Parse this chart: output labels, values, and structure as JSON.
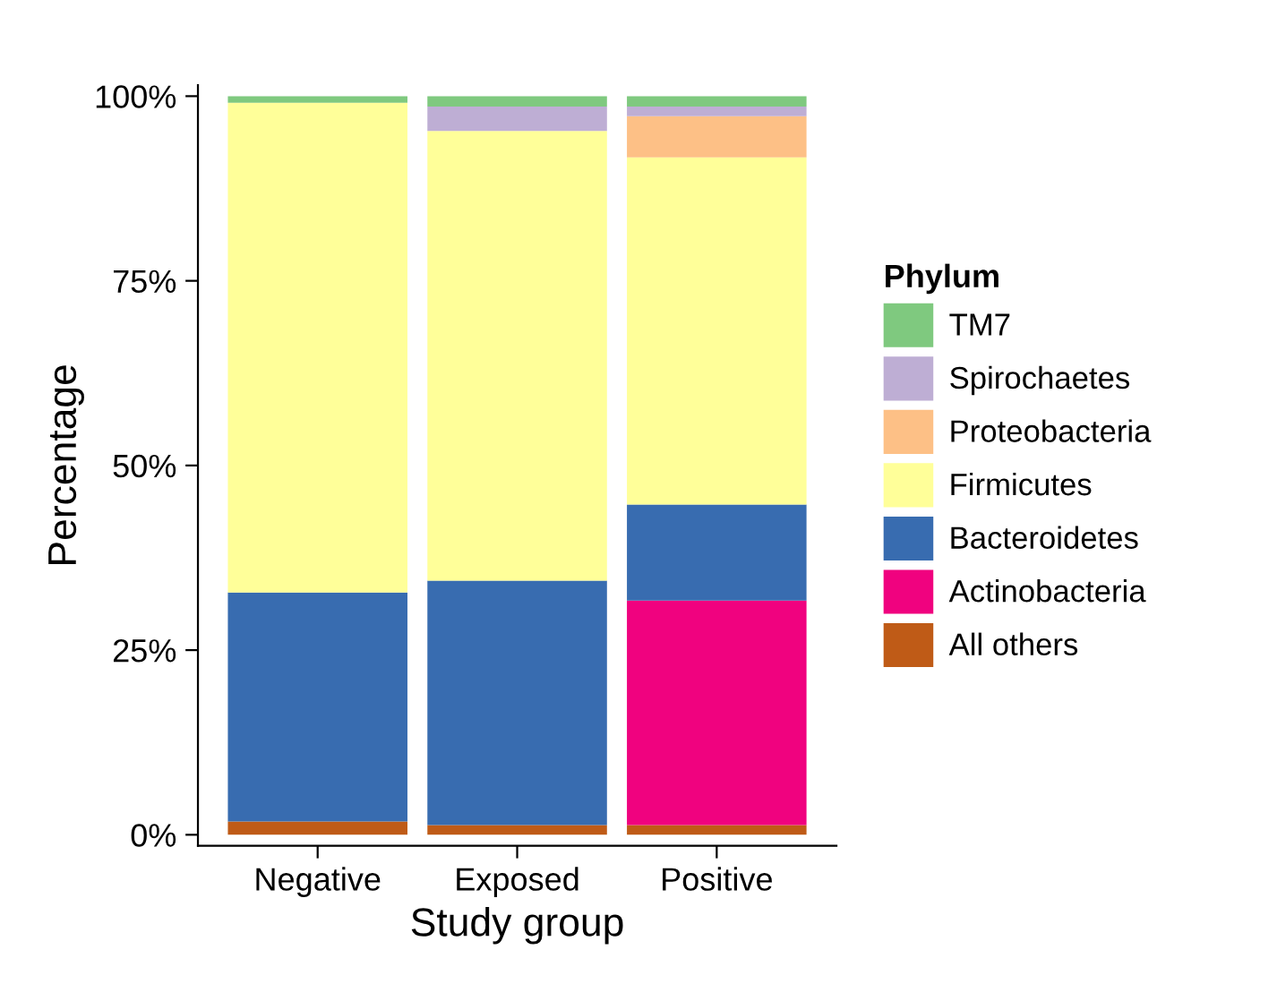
{
  "chart_data": {
    "type": "bar",
    "stacked": true,
    "xlabel": "Study group",
    "ylabel": "Percentage",
    "legend_title": "Phylum",
    "legend": "right",
    "grid": false,
    "categories": [
      "Negative",
      "Exposed",
      "Positive"
    ],
    "ylim": [
      -1.5,
      101.5
    ],
    "yticks": [
      {
        "value": 0,
        "label": "0%"
      },
      {
        "value": 25,
        "label": "25%"
      },
      {
        "value": 50,
        "label": "50%"
      },
      {
        "value": 75,
        "label": "75%"
      },
      {
        "value": 100,
        "label": "100%"
      }
    ],
    "series": [
      {
        "name": "All others",
        "color": "#bf5b17",
        "values": [
          1.8,
          1.3,
          1.3
        ]
      },
      {
        "name": "Actinobacteria",
        "color": "#f0027f",
        "values": [
          0,
          0,
          30.4
        ]
      },
      {
        "name": "Bacteroidetes",
        "color": "#386cb0",
        "values": [
          31,
          33.1,
          13
        ]
      },
      {
        "name": "Firmicutes",
        "color": "#ffff99",
        "values": [
          66.3,
          60.9,
          47
        ]
      },
      {
        "name": "Proteobacteria",
        "color": "#fdc086",
        "values": [
          0,
          0,
          5.6
        ]
      },
      {
        "name": "Spirochaetes",
        "color": "#beaed4",
        "values": [
          null,
          3.3,
          1.3
        ]
      },
      {
        "name": "TM7",
        "color": "#7fc97f",
        "values": [
          0.9,
          1.4,
          1.4
        ]
      }
    ]
  }
}
